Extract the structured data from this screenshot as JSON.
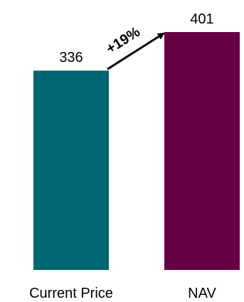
{
  "chart_data": {
    "type": "bar",
    "categories": [
      "Current Price",
      "NAV"
    ],
    "values": [
      336,
      401
    ],
    "value_labels": [
      "336",
      "401"
    ],
    "colors": [
      "#006671",
      "#660044"
    ],
    "annotation": "+19%",
    "ylim": [
      0,
      401
    ],
    "grid": false,
    "legend": "none"
  }
}
